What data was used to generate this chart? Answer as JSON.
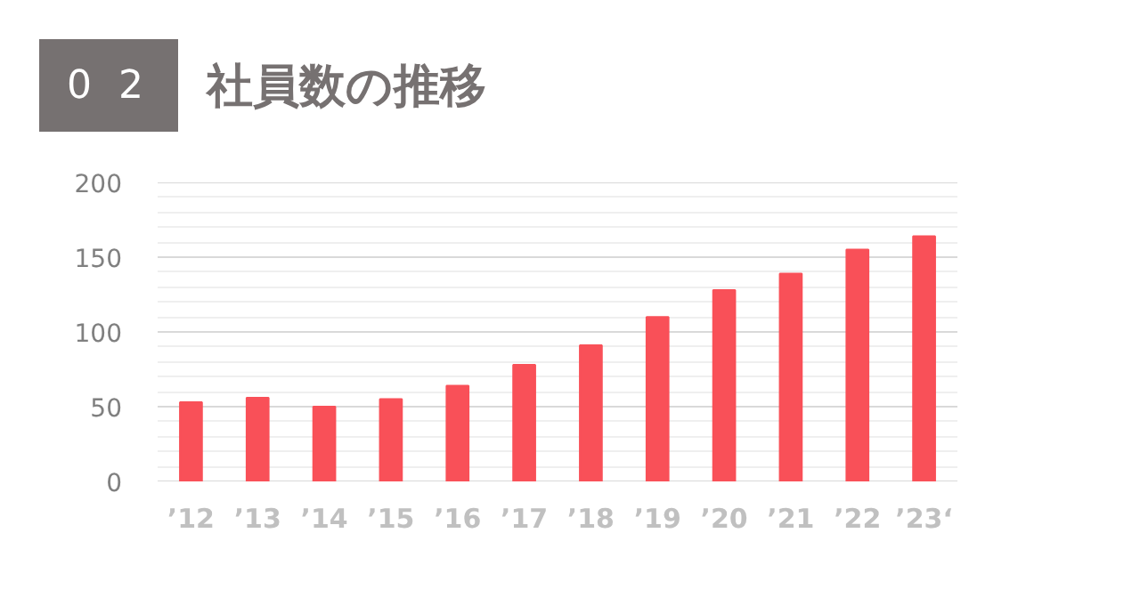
{
  "chart_data": {
    "type": "bar",
    "title": "社員数の推移",
    "annotations": [
      "0 2"
    ],
    "categories": [
      "’12",
      "’13",
      "’14",
      "’15",
      "’16",
      "’17",
      "’18",
      "’19",
      "’20",
      "’21",
      "’22",
      "’23‘"
    ],
    "values": [
      53,
      56,
      50,
      55,
      64,
      78,
      91,
      110,
      128,
      139,
      155,
      164
    ],
    "color": "#f95058",
    "ylim": [
      0,
      200
    ],
    "yticks": [
      0,
      {
        "value": 10,
        "label": null
      },
      {
        "value": 20,
        "label": null
      },
      {
        "value": 30,
        "label": null
      },
      {
        "value": 40,
        "label": null
      },
      50,
      {
        "value": 60,
        "label": null
      },
      {
        "value": 70,
        "label": null
      },
      {
        "value": 80,
        "label": null
      },
      {
        "value": 90,
        "label": null
      },
      100,
      {
        "value": 110,
        "label": null
      },
      {
        "value": 120,
        "label": null
      },
      {
        "value": 130,
        "label": null
      },
      {
        "value": 140,
        "label": null
      },
      150,
      {
        "value": 160,
        "label": null
      },
      {
        "value": 170,
        "label": null
      },
      {
        "value": 180,
        "label": null
      },
      {
        "value": 190,
        "label": null
      },
      200
    ],
    "grid": "y"
  }
}
